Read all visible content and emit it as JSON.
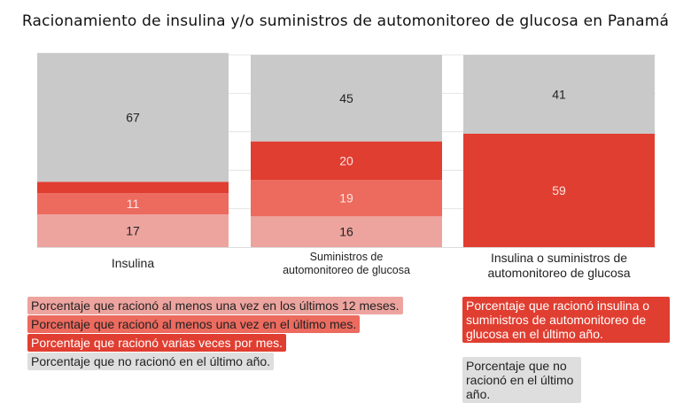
{
  "chart_data": {
    "type": "bar",
    "stacked": true,
    "title": "Racionamiento de insulina y/o suministros de automonitoreo de glucosa en Panamá",
    "categories": [
      "Insulina",
      "Suministros de automonitoreo de glucosa",
      "Insulina o suministros de automonitoreo de glucosa"
    ],
    "ylim": [
      0,
      100
    ],
    "grid": true,
    "colors": {
      "light": "#eda49f",
      "mid": "#ec6a5e",
      "red": "#e03e31",
      "gray": "#c9c9c9"
    },
    "bars": [
      {
        "segments": [
          {
            "value": 17,
            "color": "light"
          },
          {
            "value": 11,
            "color": "mid"
          },
          {
            "value": 6,
            "color": "red"
          },
          {
            "value": 67,
            "color": "gray"
          }
        ]
      },
      {
        "segments": [
          {
            "value": 16,
            "color": "light"
          },
          {
            "value": 19,
            "color": "mid"
          },
          {
            "value": 20,
            "color": "red"
          },
          {
            "value": 45,
            "color": "gray"
          }
        ]
      },
      {
        "segments": [
          {
            "value": 59,
            "color": "red"
          },
          {
            "value": 41,
            "color": "gray"
          }
        ]
      }
    ],
    "legend_left": [
      {
        "label": "Porcentaje que racionó al menos una vez en los últimos 12 meses.",
        "color": "light"
      },
      {
        "label": "Porcentaje que racionó al menos una vez en el último mes.",
        "color": "mid"
      },
      {
        "label": "Porcentaje que racionó varias veces por mes.",
        "color": "red"
      },
      {
        "label": "Porcentaje que no racionó en el último año.",
        "color": "gray"
      }
    ],
    "legend_right": [
      {
        "label": "Porcentaje que racionó insulina o suministros de automonitoreo de glucosa en el último año.",
        "color": "red"
      },
      {
        "label": "Porcentaje que no racionó en el último año.",
        "color": "gray"
      }
    ]
  }
}
